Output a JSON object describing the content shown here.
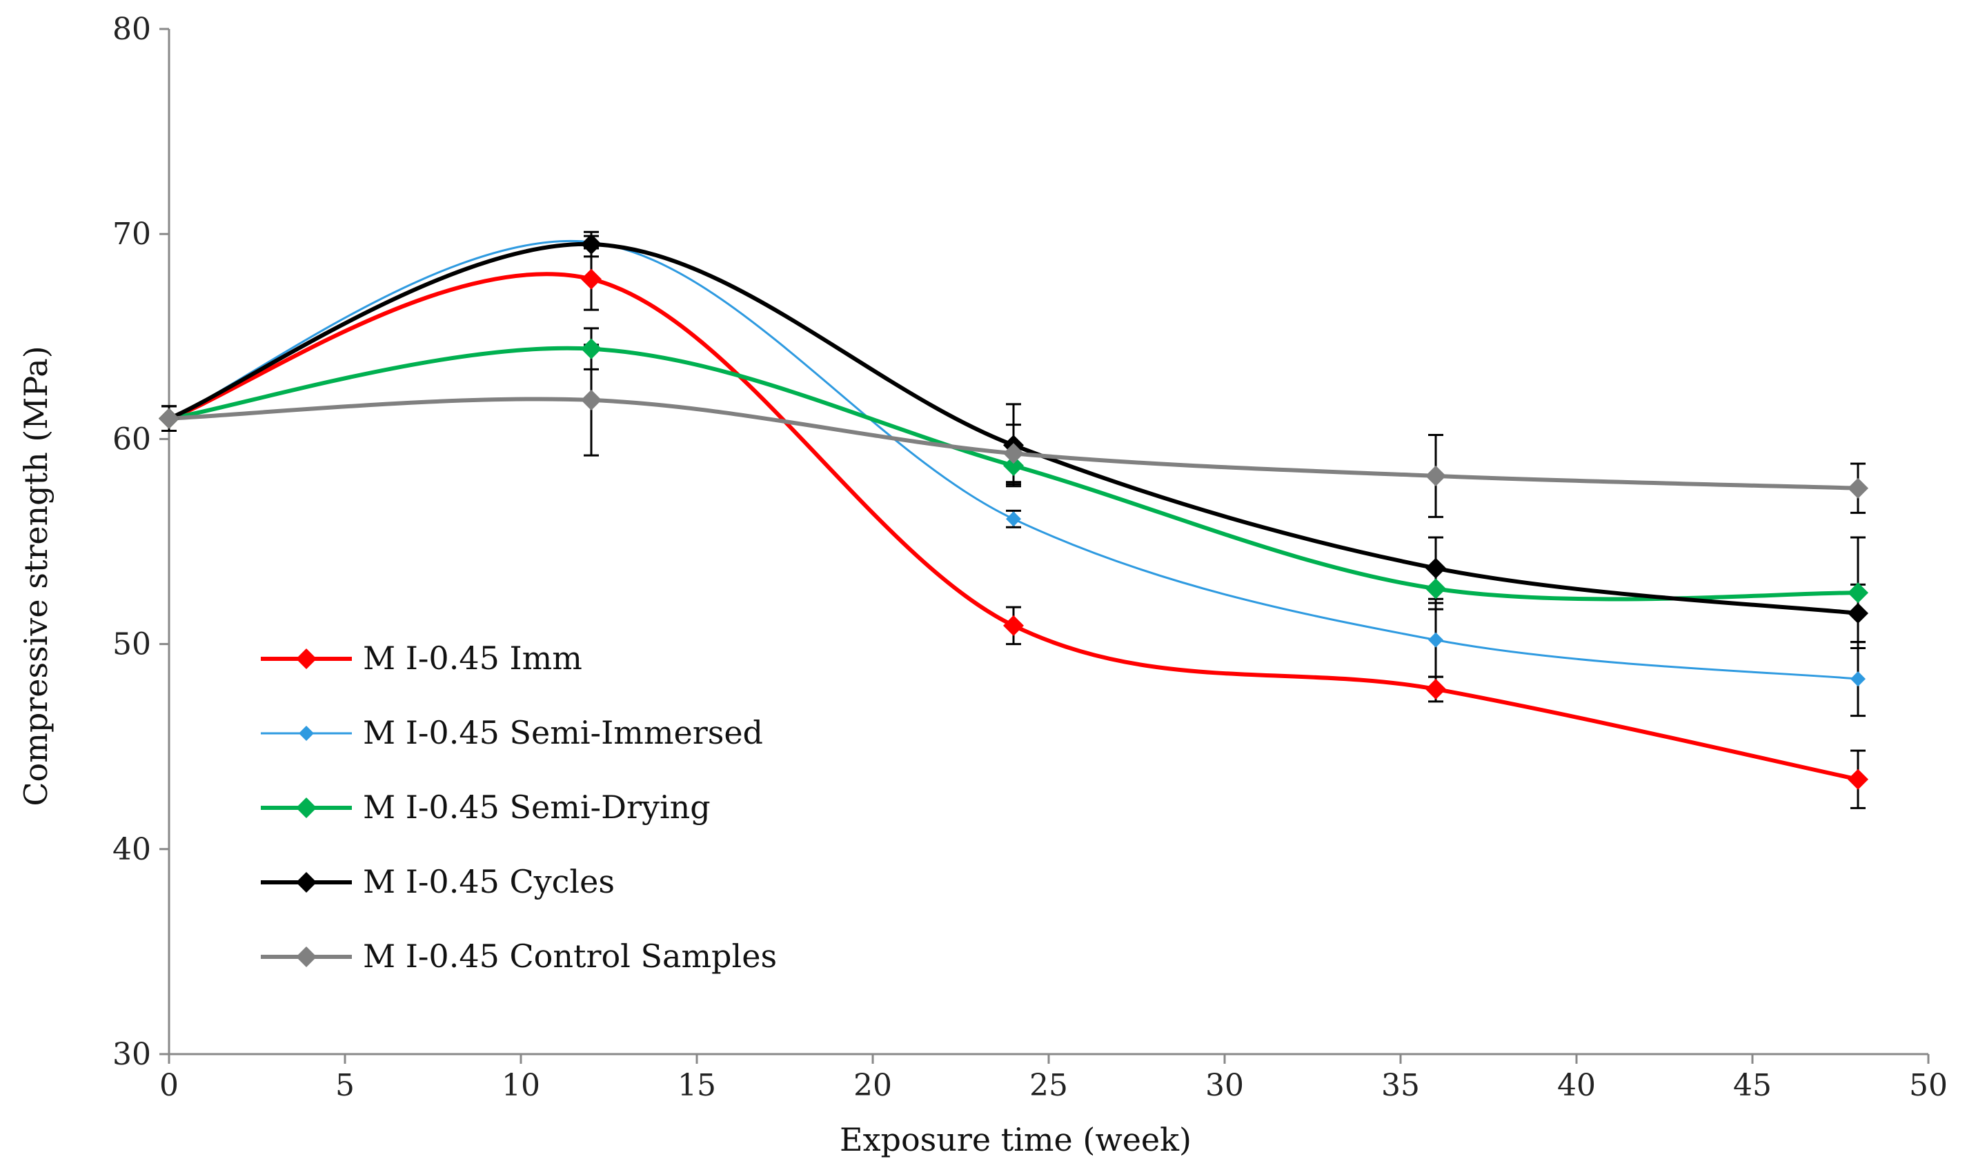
{
  "chart_data": {
    "type": "line",
    "title": "",
    "xlabel": "Exposure time (week)",
    "ylabel": "Compressive strength (MPa)",
    "xlim": [
      0,
      50
    ],
    "ylim": [
      30,
      80
    ],
    "xticks": [
      0,
      5,
      10,
      15,
      20,
      25,
      30,
      35,
      40,
      45,
      50
    ],
    "yticks": [
      30,
      40,
      50,
      60,
      70,
      80
    ],
    "grid": false,
    "legend_position": "left-lower",
    "x": [
      0,
      12,
      24,
      36,
      48
    ],
    "series": [
      {
        "name": "M I-0.45 Imm",
        "color": "#ff0000",
        "line_style": "thick",
        "values": [
          61.0,
          67.8,
          50.9,
          47.8,
          43.4
        ],
        "errors": [
          0.6,
          1.5,
          0.9,
          0.6,
          1.4
        ]
      },
      {
        "name": "M I-0.45 Semi-Immersed",
        "color": "#2e9ae0",
        "line_style": "thin",
        "values": [
          61.0,
          69.6,
          56.1,
          50.2,
          48.3
        ],
        "errors": [
          0.6,
          0.3,
          0.4,
          1.8,
          1.8
        ]
      },
      {
        "name": "M I-0.45 Semi-Drying",
        "color": "#00b050",
        "line_style": "thick",
        "values": [
          61.0,
          64.4,
          58.7,
          52.7,
          52.5
        ],
        "errors": [
          0.6,
          1.0,
          0.9,
          1.0,
          2.7
        ]
      },
      {
        "name": "M I-0.45 Cycles",
        "color": "#000000",
        "line_style": "thick",
        "values": [
          61.0,
          69.5,
          59.7,
          53.7,
          51.5
        ],
        "errors": [
          0.6,
          0.6,
          2.0,
          1.5,
          1.4
        ]
      },
      {
        "name": "M I-0.45 Control Samples",
        "color": "#808080",
        "line_style": "thick",
        "values": [
          61.0,
          61.9,
          59.3,
          58.2,
          57.6
        ],
        "errors": [
          0.6,
          2.7,
          1.4,
          2.0,
          1.2
        ]
      }
    ]
  }
}
